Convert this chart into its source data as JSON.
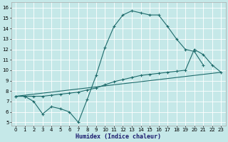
{
  "xlabel": "Humidex (Indice chaleur)",
  "bg_color": "#c5e8e8",
  "line_color": "#1e6b6b",
  "grid_color": "#ffffff",
  "xlim": [
    -0.5,
    23.5
  ],
  "ylim": [
    4.7,
    16.5
  ],
  "xticks": [
    0,
    1,
    2,
    3,
    4,
    5,
    6,
    7,
    8,
    9,
    10,
    11,
    12,
    13,
    14,
    15,
    16,
    17,
    18,
    19,
    20,
    21,
    22,
    23
  ],
  "yticks": [
    5,
    6,
    7,
    8,
    9,
    10,
    11,
    12,
    13,
    14,
    15,
    16
  ],
  "line1_x": [
    0,
    1,
    2,
    3,
    4,
    5,
    6,
    7,
    8,
    9,
    10,
    11,
    12,
    13,
    14,
    15,
    16,
    17,
    18,
    19,
    20,
    21
  ],
  "line1_y": [
    7.5,
    7.5,
    7.0,
    5.8,
    6.5,
    6.3,
    6.0,
    5.0,
    7.2,
    9.5,
    12.2,
    14.2,
    15.3,
    15.7,
    15.5,
    15.3,
    15.3,
    14.2,
    13.0,
    12.0,
    11.8,
    10.5
  ],
  "line2_x": [
    0,
    1,
    2,
    3,
    4,
    5,
    6,
    7,
    8,
    9,
    10,
    11,
    12,
    13,
    14,
    15,
    16,
    17,
    18,
    19,
    20,
    21,
    22,
    23
  ],
  "line2_y": [
    7.5,
    7.5,
    7.5,
    7.5,
    7.6,
    7.7,
    7.8,
    7.9,
    8.1,
    8.3,
    8.6,
    8.9,
    9.1,
    9.3,
    9.5,
    9.6,
    9.7,
    9.8,
    9.9,
    10.0,
    12.0,
    11.5,
    10.5,
    9.8
  ],
  "line3_x": [
    0,
    23
  ],
  "line3_y": [
    7.5,
    9.8
  ]
}
